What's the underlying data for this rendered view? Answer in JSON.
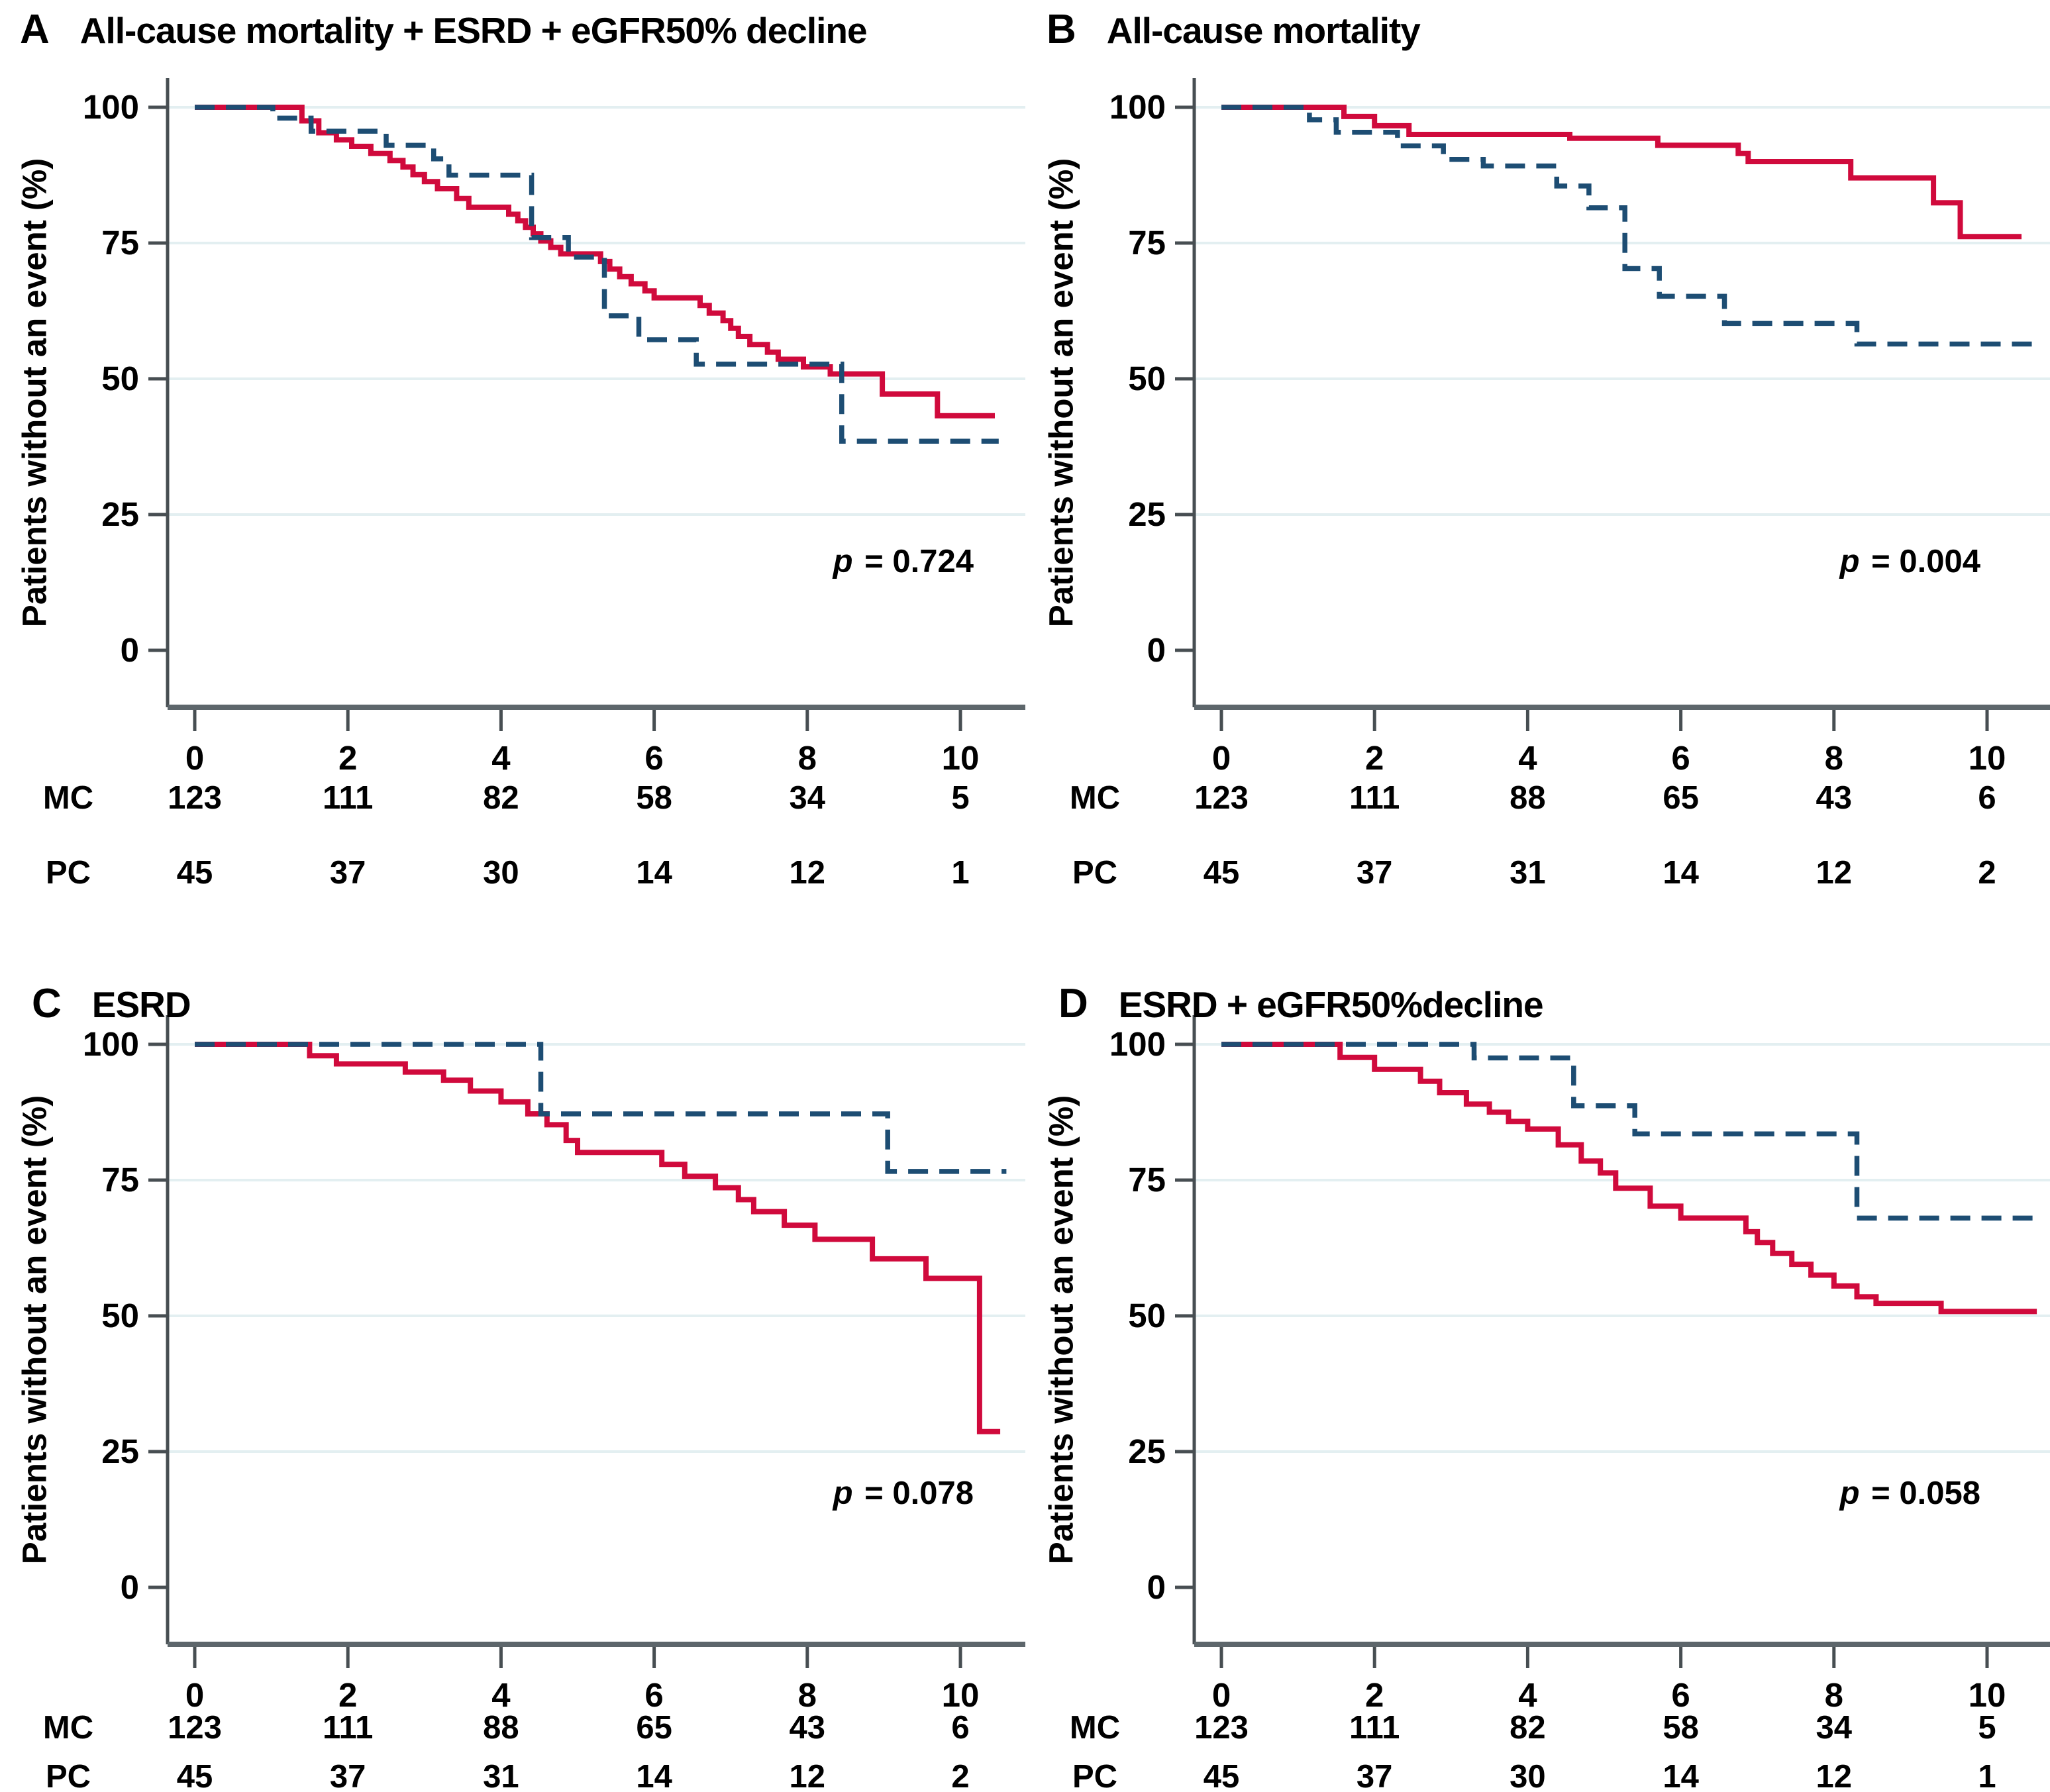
{
  "figure_name": "Kaplan-Meier event-free survival panels",
  "colors": {
    "mc_line": "#d00a3c",
    "pc_line": "#1d4d73",
    "grid": "#e3eff1",
    "axis": "#474e52",
    "x_axis_line": "#5d666b",
    "text": "#000000",
    "background": "#ffffff"
  },
  "chart_data": [
    {
      "type": "line",
      "subtype": "kaplan-meier-step",
      "panel_letter": "A",
      "title": "All-cause mortality + ESRD + eGFR50% decline",
      "ylabel": "Patients without an event (%)",
      "yticks": [
        100,
        75,
        50,
        25,
        0
      ],
      "ylim": [
        0,
        105
      ],
      "xticks": [
        0,
        2,
        4,
        6,
        8,
        10
      ],
      "xlim": [
        0,
        10.8
      ],
      "grid": "horizontal-25",
      "legend_position": "none",
      "p_italic": "p",
      "p_rest": " = 0.724",
      "series": [
        {
          "name": "MC",
          "style": "solid",
          "points": [
            [
              0,
              100
            ],
            [
              1.4,
              97.5
            ],
            [
              1.62,
              95.3
            ],
            [
              1.85,
              94
            ],
            [
              2.05,
              92.8
            ],
            [
              2.3,
              91.5
            ],
            [
              2.55,
              90.2
            ],
            [
              2.72,
              89
            ],
            [
              2.85,
              87.6
            ],
            [
              3,
              86.3
            ],
            [
              3.17,
              85
            ],
            [
              3.42,
              83.2
            ],
            [
              3.58,
              81.6
            ],
            [
              4.1,
              80.3
            ],
            [
              4.22,
              79.1
            ],
            [
              4.32,
              77.9
            ],
            [
              4.42,
              76.7
            ],
            [
              4.52,
              75.4
            ],
            [
              4.65,
              74.2
            ],
            [
              4.78,
              73
            ],
            [
              5.3,
              71.6
            ],
            [
              5.42,
              70.2
            ],
            [
              5.55,
              68.8
            ],
            [
              5.7,
              67.5
            ],
            [
              5.88,
              66.2
            ],
            [
              6,
              64.9
            ],
            [
              6.6,
              63.5
            ],
            [
              6.72,
              62.1
            ],
            [
              6.9,
              60.7
            ],
            [
              7,
              59.3
            ],
            [
              7.1,
              57.8
            ],
            [
              7.25,
              56.3
            ],
            [
              7.48,
              54.9
            ],
            [
              7.62,
              53.6
            ],
            [
              7.95,
              52.2
            ],
            [
              8.3,
              50.9
            ],
            [
              8.98,
              47.2
            ],
            [
              9.7,
              43.2
            ],
            [
              10.45,
              43.2
            ]
          ]
        },
        {
          "name": "PC",
          "style": "dashed",
          "points": [
            [
              0,
              100
            ],
            [
              1.02,
              98
            ],
            [
              1.52,
              95.6
            ],
            [
              2.5,
              93
            ],
            [
              3.12,
              90.5
            ],
            [
              3.32,
              87.5
            ],
            [
              4.4,
              76
            ],
            [
              4.88,
              72.4
            ],
            [
              5.35,
              61.6
            ],
            [
              5.8,
              57.2
            ],
            [
              6.55,
              52.7
            ],
            [
              8.45,
              38.5
            ],
            [
              10.5,
              38.5
            ]
          ]
        }
      ],
      "risk_table": {
        "rows": [
          {
            "label": "MC",
            "values": [
              123,
              111,
              82,
              58,
              34,
              5
            ]
          },
          {
            "label": "PC",
            "values": [
              45,
              37,
              30,
              14,
              12,
              1
            ]
          }
        ]
      }
    },
    {
      "type": "line",
      "subtype": "kaplan-meier-step",
      "panel_letter": "B",
      "title": "All-cause mortality",
      "ylabel": "Patients without an event (%)",
      "yticks": [
        100,
        75,
        50,
        25,
        0
      ],
      "ylim": [
        0,
        105
      ],
      "xticks": [
        0,
        2,
        4,
        6,
        8,
        10
      ],
      "xlim": [
        0,
        10.8
      ],
      "grid": "horizontal-25",
      "legend_position": "none",
      "p_italic": "p",
      "p_rest": " = 0.004",
      "series": [
        {
          "name": "MC",
          "style": "solid",
          "points": [
            [
              0,
              100
            ],
            [
              1.6,
              98.3
            ],
            [
              2,
              96.6
            ],
            [
              2.45,
              95
            ],
            [
              4.55,
              94.3
            ],
            [
              5.7,
              93
            ],
            [
              6.75,
              91.5
            ],
            [
              6.88,
              90
            ],
            [
              8.22,
              87
            ],
            [
              9.3,
              82.4
            ],
            [
              9.65,
              76.2
            ],
            [
              10.45,
              76.2
            ]
          ]
        },
        {
          "name": "PC",
          "style": "dashed",
          "points": [
            [
              0,
              100
            ],
            [
              1.15,
              97.7
            ],
            [
              1.5,
              95.4
            ],
            [
              2.3,
              92.9
            ],
            [
              2.9,
              90.4
            ],
            [
              3.42,
              89.2
            ],
            [
              4.38,
              85.5
            ],
            [
              4.8,
              81.5
            ],
            [
              5.27,
              70.3
            ],
            [
              5.72,
              65.2
            ],
            [
              6.57,
              60.2
            ],
            [
              8.3,
              56.4
            ],
            [
              10.6,
              56.4
            ]
          ]
        }
      ],
      "risk_table": {
        "rows": [
          {
            "label": "MC",
            "values": [
              123,
              111,
              88,
              65,
              43,
              6
            ]
          },
          {
            "label": "PC",
            "values": [
              45,
              37,
              31,
              14,
              12,
              2
            ]
          }
        ]
      }
    },
    {
      "type": "line",
      "subtype": "kaplan-meier-step",
      "panel_letter": "C",
      "title": "ESRD",
      "ylabel": "Patients without an event (%)",
      "yticks": [
        100,
        75,
        50,
        25,
        0
      ],
      "ylim": [
        0,
        105
      ],
      "xticks": [
        0,
        2,
        4,
        6,
        8,
        10
      ],
      "xlim": [
        0,
        10.8
      ],
      "grid": "horizontal-25",
      "legend_position": "none",
      "p_italic": "p",
      "p_rest": " = 0.078",
      "series": [
        {
          "name": "MC",
          "style": "solid",
          "points": [
            [
              0,
              100
            ],
            [
              1.5,
              97.9
            ],
            [
              1.85,
              96.4
            ],
            [
              2.75,
              94.9
            ],
            [
              3.25,
              93.4
            ],
            [
              3.6,
              91.4
            ],
            [
              4,
              89.4
            ],
            [
              4.35,
              87.2
            ],
            [
              4.6,
              85.2
            ],
            [
              4.85,
              82.3
            ],
            [
              5,
              80.1
            ],
            [
              6.1,
              77.9
            ],
            [
              6.4,
              75.7
            ],
            [
              6.8,
              73.6
            ],
            [
              7.1,
              71.4
            ],
            [
              7.3,
              69.2
            ],
            [
              7.7,
              66.7
            ],
            [
              8.1,
              64.1
            ],
            [
              8.85,
              60.5
            ],
            [
              9.55,
              56.9
            ],
            [
              10.25,
              28.7
            ],
            [
              10.52,
              28.7
            ]
          ]
        },
        {
          "name": "PC",
          "style": "dashed",
          "points": [
            [
              0,
              100
            ],
            [
              4.52,
              87.2
            ],
            [
              9.05,
              76.6
            ],
            [
              10.6,
              76.6
            ]
          ]
        }
      ],
      "risk_table": {
        "rows": [
          {
            "label": "MC",
            "values": [
              123,
              111,
              88,
              65,
              43,
              6
            ]
          },
          {
            "label": "PC",
            "values": [
              45,
              37,
              31,
              14,
              12,
              2
            ]
          }
        ]
      }
    },
    {
      "type": "line",
      "subtype": "kaplan-meier-step",
      "panel_letter": "D",
      "title": "ESRD + eGFR50%decline",
      "ylabel": "Patients without an event (%)",
      "yticks": [
        100,
        75,
        50,
        25,
        0
      ],
      "ylim": [
        0,
        105
      ],
      "xticks": [
        0,
        2,
        4,
        6,
        8,
        10
      ],
      "xlim": [
        0,
        10.8
      ],
      "grid": "horizontal-25",
      "legend_position": "none",
      "p_italic": "p",
      "p_rest": " = 0.058",
      "series": [
        {
          "name": "MC",
          "style": "solid",
          "points": [
            [
              0,
              100
            ],
            [
              1.55,
              97.6
            ],
            [
              2,
              95.4
            ],
            [
              2.6,
              93.2
            ],
            [
              2.85,
              91.1
            ],
            [
              3.2,
              89
            ],
            [
              3.5,
              87.5
            ],
            [
              3.75,
              85.8
            ],
            [
              4,
              84.4
            ],
            [
              4.4,
              81.5
            ],
            [
              4.7,
              78.5
            ],
            [
              4.95,
              76.3
            ],
            [
              5.15,
              73.5
            ],
            [
              5.6,
              70.2
            ],
            [
              6,
              68
            ],
            [
              6.85,
              65.5
            ],
            [
              7,
              63.5
            ],
            [
              7.2,
              61.5
            ],
            [
              7.45,
              59.5
            ],
            [
              7.7,
              57.5
            ],
            [
              8,
              55.5
            ],
            [
              8.3,
              53.5
            ],
            [
              8.55,
              52.3
            ],
            [
              9.4,
              50.8
            ],
            [
              10.65,
              50.8
            ]
          ]
        },
        {
          "name": "PC",
          "style": "dashed",
          "points": [
            [
              0,
              100
            ],
            [
              3.3,
              97.5
            ],
            [
              4.6,
              88.7
            ],
            [
              5.4,
              83.5
            ],
            [
              8.3,
              68
            ],
            [
              10.65,
              68
            ]
          ]
        }
      ],
      "risk_table": {
        "rows": [
          {
            "label": "MC",
            "values": [
              123,
              111,
              82,
              58,
              34,
              5
            ]
          },
          {
            "label": "PC",
            "values": [
              45,
              37,
              30,
              14,
              12,
              1
            ]
          }
        ]
      }
    }
  ]
}
